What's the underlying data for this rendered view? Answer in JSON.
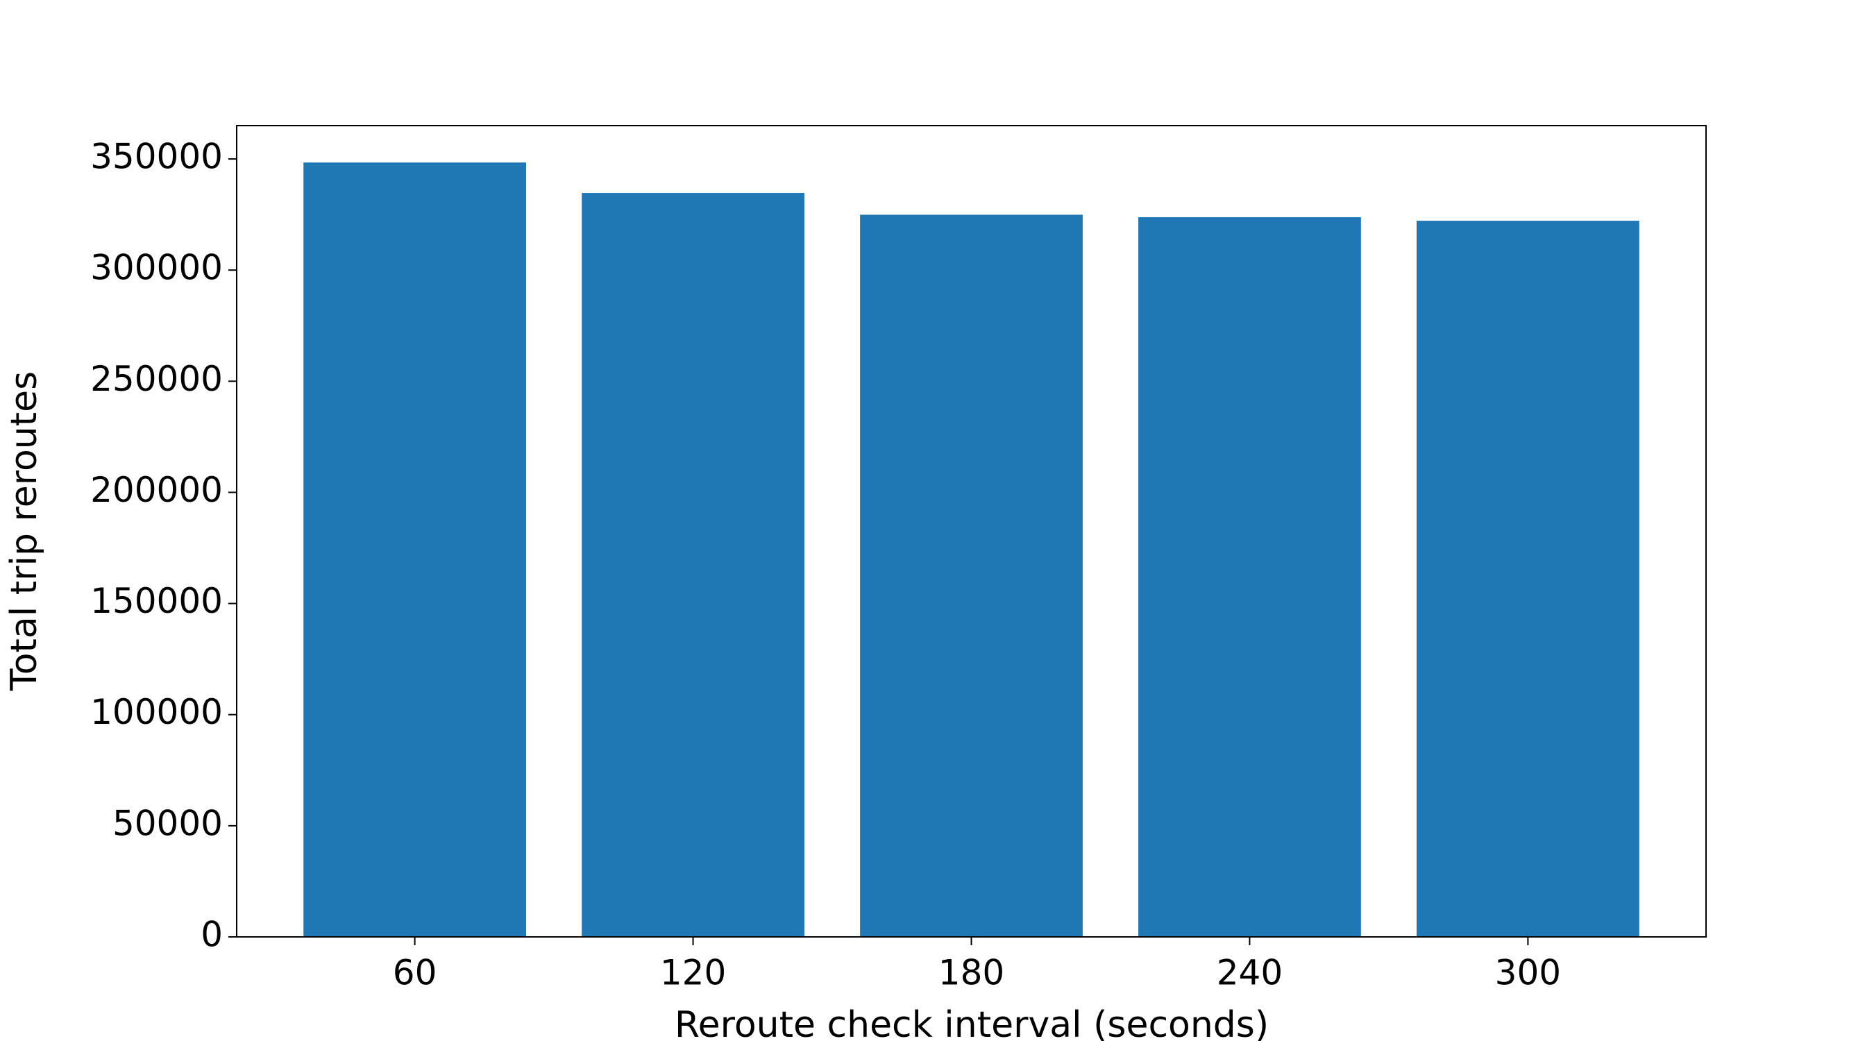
{
  "chart_data": {
    "type": "bar",
    "x_label": "Reroute check interval (seconds)",
    "y_label": "Total trip reroutes",
    "categories": [
      "60",
      "120",
      "180",
      "240",
      "300"
    ],
    "values": [
      348400,
      334700,
      324900,
      323800,
      322200
    ],
    "color": "#1f77b4",
    "ylim": [
      0,
      365000
    ],
    "yticks": [
      0,
      50000,
      100000,
      150000,
      200000,
      250000,
      300000,
      350000
    ],
    "grid": false
  }
}
